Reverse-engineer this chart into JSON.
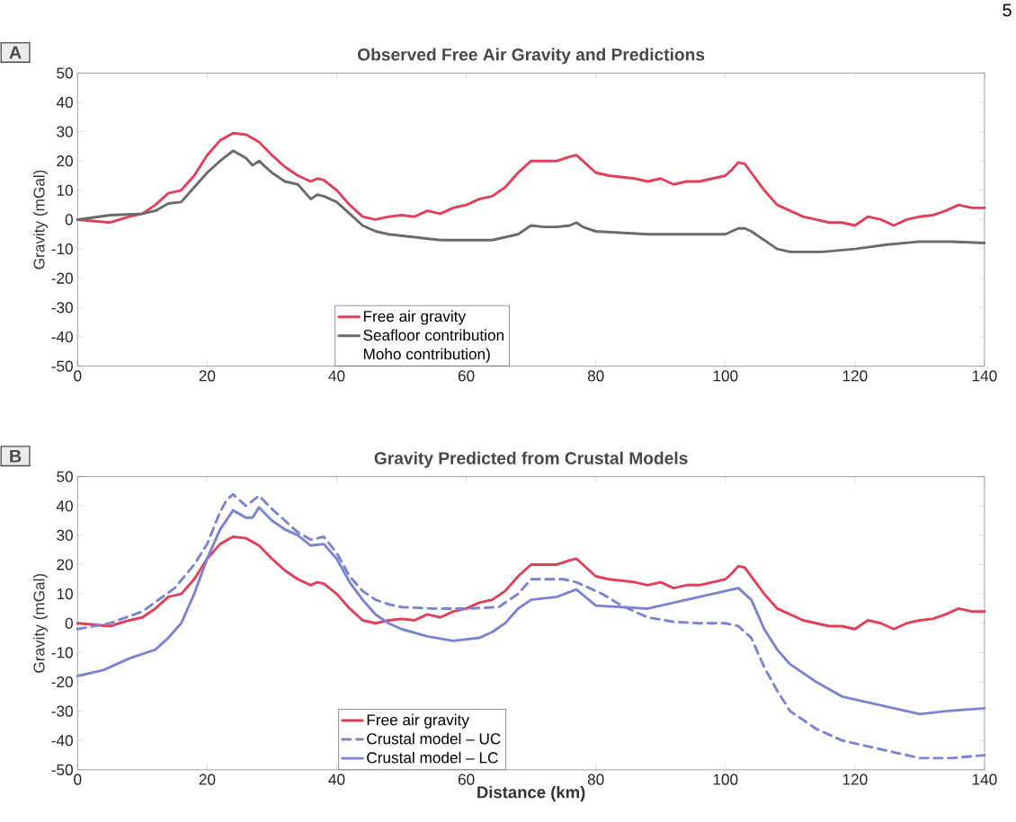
{
  "chart_data": [
    {
      "type": "line",
      "title": "Observed Free Air Gravity and Predictions",
      "ylabel": "Gravity (mGal)",
      "xlim": [
        0,
        140
      ],
      "ylim": [
        -50,
        50
      ],
      "xticks": [
        0,
        20,
        40,
        60,
        80,
        100,
        120,
        140
      ],
      "yticks": [
        -50,
        -40,
        -30,
        -20,
        -10,
        0,
        10,
        20,
        30,
        40,
        50
      ],
      "legend": "bottom",
      "grid": false,
      "annotations": [
        "A",
        "Moho contribution)",
        "5"
      ],
      "series": [
        {
          "name": "Free air gravity",
          "color": "#e0405a",
          "line_style": "solid",
          "x": [
            0,
            5,
            8,
            10,
            12,
            14,
            16,
            18,
            20,
            22,
            24,
            26,
            28,
            30,
            32,
            34,
            36,
            37,
            38,
            40,
            42,
            44,
            46,
            48,
            50,
            52,
            54,
            56,
            58,
            60,
            62,
            64,
            66,
            68,
            70,
            72,
            74,
            76,
            77,
            78,
            80,
            82,
            84,
            86,
            88,
            90,
            92,
            94,
            96,
            98,
            100,
            101,
            102,
            103,
            104,
            106,
            108,
            110,
            112,
            114,
            116,
            118,
            120,
            122,
            124,
            126,
            128,
            130,
            132,
            134,
            136,
            138,
            140
          ],
          "values": [
            0,
            -1,
            1,
            2,
            5,
            9,
            10,
            15,
            22,
            27,
            29.5,
            29,
            26.5,
            22,
            18,
            15,
            13,
            14,
            13.5,
            10,
            5,
            1,
            0,
            1,
            1.5,
            1,
            3,
            2,
            4,
            5,
            7,
            8,
            11,
            16,
            20,
            20,
            20,
            21.5,
            22,
            20,
            16,
            15,
            14.5,
            14,
            13,
            14,
            12,
            13,
            13,
            14,
            15,
            17,
            19.5,
            19,
            16,
            10,
            5,
            3,
            1,
            0,
            -1,
            -1,
            -2,
            1,
            0,
            -2,
            0,
            1,
            1.5,
            3,
            5,
            4,
            4
          ]
        },
        {
          "name": "Seafloor contribution",
          "color": "#6b6b6b",
          "line_style": "solid",
          "x": [
            0,
            5,
            10,
            12,
            14,
            16,
            18,
            20,
            22,
            24,
            26,
            27,
            28,
            30,
            32,
            34,
            36,
            37,
            38,
            40,
            42,
            44,
            46,
            48,
            52,
            56,
            60,
            64,
            66,
            68,
            70,
            72,
            74,
            76,
            77,
            78,
            80,
            84,
            88,
            92,
            96,
            100,
            102,
            103,
            104,
            106,
            108,
            110,
            115,
            120,
            125,
            130,
            135,
            140
          ],
          "values": [
            0,
            1.5,
            2,
            3,
            5.5,
            6,
            11,
            16,
            20,
            23.5,
            21,
            18.5,
            20,
            16,
            13,
            12,
            7,
            8.5,
            8,
            6,
            2,
            -2,
            -4,
            -5,
            -6,
            -7,
            -7,
            -7,
            -6,
            -5,
            -2,
            -2.5,
            -2.5,
            -2,
            -1,
            -2.5,
            -4,
            -4.5,
            -5,
            -5,
            -5,
            -5,
            -3,
            -3,
            -4,
            -7,
            -10,
            -11,
            -11,
            -10,
            -8.5,
            -7.5,
            -7.5,
            -8
          ]
        }
      ]
    },
    {
      "type": "line",
      "title": "Gravity Predicted from Crustal Models",
      "xlabel": "Distance (km)",
      "ylabel": "Gravity (mGal)",
      "xlim": [
        0,
        140
      ],
      "ylim": [
        -50,
        50
      ],
      "xticks": [
        0,
        20,
        40,
        60,
        80,
        100,
        120,
        140
      ],
      "yticks": [
        -50,
        -40,
        -30,
        -20,
        -10,
        0,
        10,
        20,
        30,
        40,
        50
      ],
      "legend": "bottom",
      "grid": false,
      "annotations": [
        "B"
      ],
      "series": [
        {
          "name": "Free air gravity",
          "color": "#e0405a",
          "line_style": "solid",
          "x": [
            0,
            5,
            8,
            10,
            12,
            14,
            16,
            18,
            20,
            22,
            24,
            26,
            28,
            30,
            32,
            34,
            36,
            37,
            38,
            40,
            42,
            44,
            46,
            48,
            50,
            52,
            54,
            56,
            58,
            60,
            62,
            64,
            66,
            68,
            70,
            72,
            74,
            76,
            77,
            78,
            80,
            82,
            84,
            86,
            88,
            90,
            92,
            94,
            96,
            98,
            100,
            101,
            102,
            103,
            104,
            106,
            108,
            110,
            112,
            114,
            116,
            118,
            120,
            122,
            124,
            126,
            128,
            130,
            132,
            134,
            136,
            138,
            140
          ],
          "values": [
            0,
            -1,
            1,
            2,
            5,
            9,
            10,
            15,
            22,
            27,
            29.5,
            29,
            26.5,
            22,
            18,
            15,
            13,
            14,
            13.5,
            10,
            5,
            1,
            0,
            1,
            1.5,
            1,
            3,
            2,
            4,
            5,
            7,
            8,
            11,
            16,
            20,
            20,
            20,
            21.5,
            22,
            20,
            16,
            15,
            14.5,
            14,
            13,
            14,
            12,
            13,
            13,
            14,
            15,
            17,
            19.5,
            19,
            16,
            10,
            5,
            3,
            1,
            0,
            -1,
            -1,
            -2,
            1,
            0,
            -2,
            0,
            1,
            1.5,
            3,
            5,
            4,
            4
          ]
        },
        {
          "name": "Crustal model – UC",
          "color": "#7b84d0",
          "line_style": "dashed",
          "x": [
            0,
            5,
            10,
            15,
            18,
            20,
            22,
            23,
            24,
            26,
            28,
            30,
            32,
            34,
            36,
            38,
            40,
            42,
            44,
            46,
            48,
            50,
            55,
            60,
            65,
            68,
            70,
            72,
            75,
            77,
            79,
            81,
            84,
            88,
            92,
            96,
            100,
            102,
            104,
            106,
            108,
            110,
            114,
            118,
            122,
            126,
            130,
            135,
            140
          ],
          "values": [
            -2,
            0,
            4,
            12,
            20,
            27,
            38,
            42,
            44,
            40,
            43.5,
            39,
            35,
            31,
            28.5,
            29.5,
            24,
            16,
            11,
            8,
            6.5,
            5.5,
            5,
            5,
            5.5,
            10,
            15,
            15,
            15,
            14,
            12,
            10,
            6,
            2,
            0.5,
            0,
            0,
            -1,
            -5,
            -15,
            -23,
            -30,
            -36,
            -40,
            -42,
            -44,
            -46,
            -46,
            -45
          ]
        },
        {
          "name": "Crustal model – LC",
          "color": "#7b84d0",
          "line_style": "solid",
          "x": [
            0,
            4,
            8,
            12,
            14,
            16,
            18,
            20,
            22,
            24,
            26,
            27,
            28,
            30,
            32,
            34,
            36,
            38,
            40,
            42,
            44,
            46,
            48,
            50,
            54,
            58,
            62,
            64,
            66,
            68,
            70,
            74,
            77,
            80,
            84,
            88,
            92,
            96,
            100,
            102,
            104,
            106,
            108,
            110,
            114,
            118,
            122,
            126,
            130,
            134,
            140
          ],
          "values": [
            -18,
            -16,
            -12,
            -9,
            -5,
            0,
            10,
            22,
            32,
            38.5,
            36,
            36,
            39.5,
            35,
            32,
            30,
            26.5,
            27,
            22,
            14,
            8,
            3,
            0,
            -2,
            -4.5,
            -6,
            -5,
            -3,
            0,
            5,
            8,
            9,
            11.5,
            6,
            5.5,
            5,
            7,
            9,
            11,
            12,
            8,
            -2,
            -9,
            -14,
            -20,
            -25,
            -27,
            -29,
            -31,
            -30,
            -29
          ]
        }
      ]
    }
  ]
}
